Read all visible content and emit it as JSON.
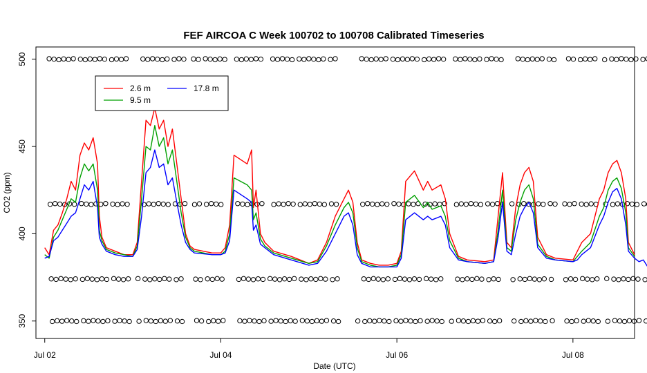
{
  "chart_data": {
    "type": "line",
    "title": "FEF AIRCOA C  Week 100702 to 100708  Calibrated Timeseries",
    "xlabel": "Date (UTC)",
    "ylabel": "CO2 (ppm)",
    "xlim": [
      1.9,
      8.7
    ],
    "ylim": [
      340,
      507
    ],
    "x_ticks": [
      2,
      4,
      6,
      8
    ],
    "x_tick_labels": [
      "Jul 02",
      "Jul 04",
      "Jul 06",
      "Jul 08"
    ],
    "y_ticks": [
      350,
      400,
      450,
      500
    ],
    "y_tick_labels": [
      "350",
      "400",
      "450",
      "500"
    ],
    "grid": false,
    "legend_position": "top-left",
    "series": [
      {
        "name": "2.6 m",
        "color": "#ff0000",
        "points": [
          [
            2.0,
            392
          ],
          [
            2.05,
            388
          ],
          [
            2.1,
            402
          ],
          [
            2.15,
            405
          ],
          [
            2.2,
            412
          ],
          [
            2.25,
            420
          ],
          [
            2.3,
            430
          ],
          [
            2.35,
            425
          ],
          [
            2.4,
            445
          ],
          [
            2.45,
            452
          ],
          [
            2.5,
            448
          ],
          [
            2.55,
            455
          ],
          [
            2.6,
            440
          ],
          [
            2.62,
            410
          ],
          [
            2.65,
            398
          ],
          [
            2.7,
            392
          ],
          [
            2.8,
            390
          ],
          [
            2.9,
            388
          ],
          [
            3.0,
            388
          ],
          [
            3.05,
            395
          ],
          [
            3.1,
            430
          ],
          [
            3.15,
            465
          ],
          [
            3.2,
            462
          ],
          [
            3.25,
            472
          ],
          [
            3.3,
            460
          ],
          [
            3.35,
            465
          ],
          [
            3.4,
            450
          ],
          [
            3.45,
            460
          ],
          [
            3.5,
            440
          ],
          [
            3.55,
            420
          ],
          [
            3.6,
            400
          ],
          [
            3.65,
            393
          ],
          [
            3.7,
            391
          ],
          [
            3.9,
            389
          ],
          [
            4.0,
            389
          ],
          [
            4.05,
            392
          ],
          [
            4.1,
            405
          ],
          [
            4.15,
            445
          ],
          [
            4.3,
            440
          ],
          [
            4.35,
            448
          ],
          [
            4.37,
            415
          ],
          [
            4.4,
            425
          ],
          [
            4.45,
            400
          ],
          [
            4.5,
            395
          ],
          [
            4.6,
            390
          ],
          [
            4.8,
            387
          ],
          [
            5.0,
            383
          ],
          [
            5.1,
            385
          ],
          [
            5.2,
            395
          ],
          [
            5.3,
            410
          ],
          [
            5.4,
            420
          ],
          [
            5.45,
            425
          ],
          [
            5.5,
            418
          ],
          [
            5.55,
            395
          ],
          [
            5.6,
            385
          ],
          [
            5.7,
            383
          ],
          [
            5.8,
            382
          ],
          [
            5.9,
            382
          ],
          [
            6.0,
            383
          ],
          [
            6.05,
            390
          ],
          [
            6.1,
            430
          ],
          [
            6.2,
            436
          ],
          [
            6.3,
            425
          ],
          [
            6.35,
            430
          ],
          [
            6.4,
            425
          ],
          [
            6.5,
            428
          ],
          [
            6.55,
            420
          ],
          [
            6.6,
            400
          ],
          [
            6.7,
            387
          ],
          [
            6.8,
            385
          ],
          [
            7.0,
            384
          ],
          [
            7.1,
            385
          ],
          [
            7.15,
            410
          ],
          [
            7.2,
            435
          ],
          [
            7.25,
            395
          ],
          [
            7.3,
            392
          ],
          [
            7.35,
            415
          ],
          [
            7.4,
            428
          ],
          [
            7.45,
            435
          ],
          [
            7.5,
            438
          ],
          [
            7.55,
            430
          ],
          [
            7.6,
            398
          ],
          [
            7.7,
            388
          ],
          [
            7.8,
            386
          ],
          [
            8.0,
            385
          ],
          [
            8.05,
            390
          ],
          [
            8.1,
            395
          ],
          [
            8.2,
            400
          ],
          [
            8.3,
            420
          ],
          [
            8.35,
            425
          ],
          [
            8.4,
            435
          ],
          [
            8.45,
            440
          ],
          [
            8.5,
            442
          ],
          [
            8.55,
            435
          ],
          [
            8.6,
            420
          ],
          [
            8.63,
            395
          ],
          [
            8.7,
            388
          ]
        ]
      },
      {
        "name": "9.5 m",
        "color": "#00a000",
        "points": [
          [
            2.0,
            388
          ],
          [
            2.05,
            386
          ],
          [
            2.1,
            398
          ],
          [
            2.15,
            402
          ],
          [
            2.2,
            408
          ],
          [
            2.25,
            414
          ],
          [
            2.3,
            420
          ],
          [
            2.35,
            418
          ],
          [
            2.4,
            432
          ],
          [
            2.45,
            440
          ],
          [
            2.5,
            436
          ],
          [
            2.55,
            440
          ],
          [
            2.6,
            425
          ],
          [
            2.62,
            402
          ],
          [
            2.65,
            396
          ],
          [
            2.7,
            391
          ],
          [
            2.8,
            389
          ],
          [
            2.9,
            388
          ],
          [
            3.0,
            387
          ],
          [
            3.05,
            393
          ],
          [
            3.1,
            420
          ],
          [
            3.15,
            450
          ],
          [
            3.2,
            448
          ],
          [
            3.25,
            462
          ],
          [
            3.3,
            450
          ],
          [
            3.35,
            455
          ],
          [
            3.4,
            440
          ],
          [
            3.45,
            448
          ],
          [
            3.5,
            430
          ],
          [
            3.55,
            412
          ],
          [
            3.6,
            398
          ],
          [
            3.65,
            392
          ],
          [
            3.7,
            390
          ],
          [
            3.9,
            388
          ],
          [
            4.0,
            388
          ],
          [
            4.05,
            390
          ],
          [
            4.1,
            400
          ],
          [
            4.15,
            432
          ],
          [
            4.3,
            428
          ],
          [
            4.35,
            425
          ],
          [
            4.37,
            408
          ],
          [
            4.4,
            412
          ],
          [
            4.45,
            397
          ],
          [
            4.5,
            393
          ],
          [
            4.6,
            389
          ],
          [
            4.8,
            386
          ],
          [
            5.0,
            383
          ],
          [
            5.1,
            384
          ],
          [
            5.2,
            393
          ],
          [
            5.3,
            405
          ],
          [
            5.4,
            415
          ],
          [
            5.45,
            418
          ],
          [
            5.5,
            412
          ],
          [
            5.55,
            392
          ],
          [
            5.6,
            384
          ],
          [
            5.7,
            382
          ],
          [
            5.8,
            381
          ],
          [
            5.9,
            381
          ],
          [
            6.0,
            382
          ],
          [
            6.05,
            388
          ],
          [
            6.1,
            418
          ],
          [
            6.2,
            422
          ],
          [
            6.3,
            415
          ],
          [
            6.35,
            418
          ],
          [
            6.4,
            414
          ],
          [
            6.5,
            416
          ],
          [
            6.55,
            410
          ],
          [
            6.6,
            396
          ],
          [
            6.7,
            386
          ],
          [
            6.8,
            384
          ],
          [
            7.0,
            383
          ],
          [
            7.1,
            384
          ],
          [
            7.15,
            402
          ],
          [
            7.2,
            425
          ],
          [
            7.25,
            392
          ],
          [
            7.3,
            390
          ],
          [
            7.35,
            408
          ],
          [
            7.4,
            418
          ],
          [
            7.45,
            425
          ],
          [
            7.5,
            428
          ],
          [
            7.55,
            420
          ],
          [
            7.6,
            394
          ],
          [
            7.7,
            387
          ],
          [
            7.8,
            385
          ],
          [
            8.0,
            384
          ],
          [
            8.05,
            387
          ],
          [
            8.1,
            390
          ],
          [
            8.2,
            395
          ],
          [
            8.3,
            410
          ],
          [
            8.35,
            415
          ],
          [
            8.4,
            425
          ],
          [
            8.45,
            430
          ],
          [
            8.5,
            432
          ],
          [
            8.55,
            426
          ],
          [
            8.6,
            412
          ],
          [
            8.63,
            392
          ],
          [
            8.7,
            387
          ]
        ]
      },
      {
        "name": "17.8 m",
        "color": "#0000ff",
        "points": [
          [
            2.0,
            386
          ],
          [
            2.05,
            387
          ],
          [
            2.1,
            396
          ],
          [
            2.15,
            398
          ],
          [
            2.2,
            402
          ],
          [
            2.25,
            406
          ],
          [
            2.3,
            410
          ],
          [
            2.35,
            412
          ],
          [
            2.4,
            420
          ],
          [
            2.45,
            428
          ],
          [
            2.5,
            425
          ],
          [
            2.55,
            430
          ],
          [
            2.6,
            415
          ],
          [
            2.62,
            398
          ],
          [
            2.65,
            394
          ],
          [
            2.7,
            390
          ],
          [
            2.8,
            388
          ],
          [
            2.9,
            387
          ],
          [
            3.0,
            387
          ],
          [
            3.05,
            391
          ],
          [
            3.1,
            410
          ],
          [
            3.15,
            435
          ],
          [
            3.2,
            438
          ],
          [
            3.25,
            448
          ],
          [
            3.3,
            438
          ],
          [
            3.35,
            440
          ],
          [
            3.4,
            428
          ],
          [
            3.45,
            432
          ],
          [
            3.5,
            418
          ],
          [
            3.55,
            405
          ],
          [
            3.6,
            395
          ],
          [
            3.65,
            391
          ],
          [
            3.7,
            389
          ],
          [
            3.9,
            388
          ],
          [
            4.0,
            388
          ],
          [
            4.05,
            389
          ],
          [
            4.1,
            396
          ],
          [
            4.15,
            425
          ],
          [
            4.3,
            420
          ],
          [
            4.35,
            418
          ],
          [
            4.37,
            402
          ],
          [
            4.4,
            405
          ],
          [
            4.45,
            394
          ],
          [
            4.5,
            392
          ],
          [
            4.6,
            388
          ],
          [
            4.8,
            385
          ],
          [
            5.0,
            382
          ],
          [
            5.1,
            383
          ],
          [
            5.2,
            390
          ],
          [
            5.3,
            400
          ],
          [
            5.4,
            410
          ],
          [
            5.45,
            412
          ],
          [
            5.5,
            405
          ],
          [
            5.55,
            388
          ],
          [
            5.6,
            383
          ],
          [
            5.7,
            381
          ],
          [
            5.8,
            381
          ],
          [
            5.9,
            381
          ],
          [
            6.0,
            381
          ],
          [
            6.05,
            386
          ],
          [
            6.1,
            408
          ],
          [
            6.2,
            412
          ],
          [
            6.3,
            408
          ],
          [
            6.35,
            410
          ],
          [
            6.4,
            408
          ],
          [
            6.5,
            410
          ],
          [
            6.55,
            405
          ],
          [
            6.6,
            392
          ],
          [
            6.7,
            385
          ],
          [
            6.8,
            384
          ],
          [
            7.0,
            383
          ],
          [
            7.1,
            384
          ],
          [
            7.15,
            398
          ],
          [
            7.2,
            418
          ],
          [
            7.25,
            390
          ],
          [
            7.3,
            388
          ],
          [
            7.35,
            400
          ],
          [
            7.4,
            410
          ],
          [
            7.45,
            415
          ],
          [
            7.5,
            418
          ],
          [
            7.55,
            412
          ],
          [
            7.6,
            392
          ],
          [
            7.7,
            386
          ],
          [
            7.8,
            385
          ],
          [
            8.0,
            384
          ],
          [
            8.05,
            385
          ],
          [
            8.1,
            388
          ],
          [
            8.2,
            392
          ],
          [
            8.3,
            405
          ],
          [
            8.35,
            410
          ],
          [
            8.4,
            418
          ],
          [
            8.45,
            424
          ],
          [
            8.5,
            426
          ],
          [
            8.55,
            420
          ],
          [
            8.6,
            405
          ],
          [
            8.63,
            390
          ],
          [
            8.7,
            386
          ],
          [
            8.75,
            384
          ],
          [
            8.8,
            385
          ],
          [
            8.85,
            381
          ],
          [
            8.9,
            385
          ],
          [
            8.95,
            384
          ]
        ]
      }
    ],
    "flag_markers": {
      "marker": "open-circle",
      "levels": [
        500,
        417,
        374,
        350
      ],
      "x_gaps": [
        [
          2.98,
          3.05
        ],
        [
          3.6,
          3.68
        ],
        [
          4.05,
          4.15
        ],
        [
          4.5,
          4.55
        ],
        [
          5.35,
          5.55
        ],
        [
          6.55,
          6.62
        ],
        [
          7.2,
          7.3
        ],
        [
          7.8,
          7.9
        ],
        [
          8.3,
          8.35
        ]
      ]
    },
    "legend": [
      "2.6 m",
      "9.5 m",
      "17.8 m"
    ]
  }
}
